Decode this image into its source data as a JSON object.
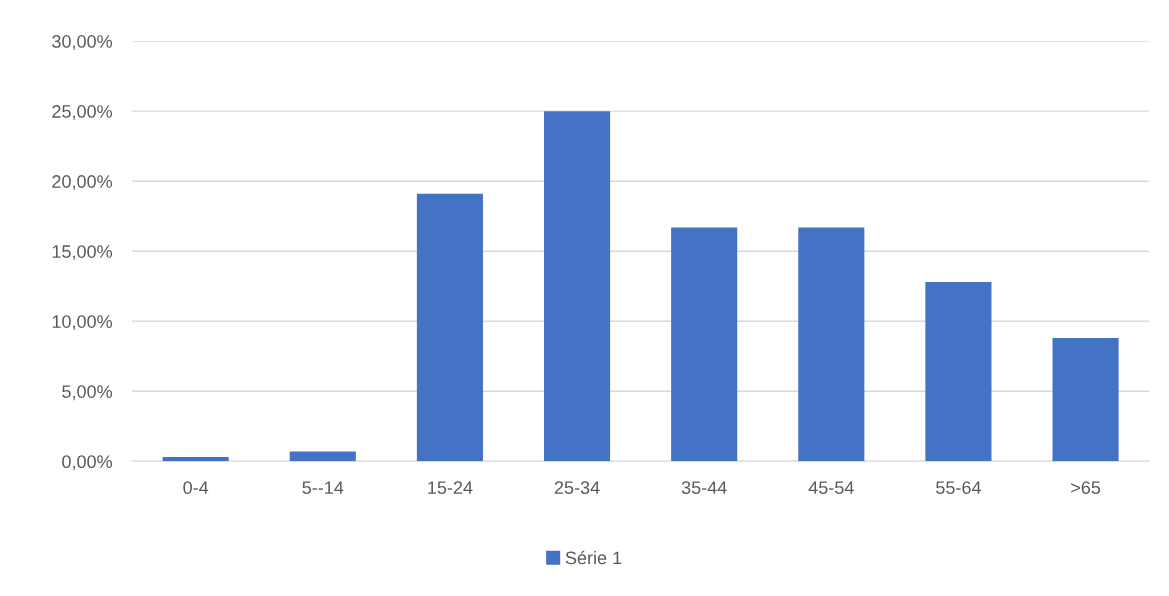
{
  "chart_data": {
    "type": "bar",
    "categories": [
      "0-4",
      "5--14",
      "15-24",
      "25-34",
      "35-44",
      "45-54",
      "55-64",
      ">65"
    ],
    "series": [
      {
        "name": "Série 1",
        "color": "#4472c4",
        "values": [
          0.3,
          0.7,
          19.1,
          25.0,
          16.7,
          16.7,
          12.8,
          8.8
        ]
      }
    ],
    "ylim": [
      0,
      30
    ],
    "yticks": [
      {
        "value": 0,
        "label": "0,00%"
      },
      {
        "value": 5,
        "label": "5,00%"
      },
      {
        "value": 10,
        "label": "10,00%"
      },
      {
        "value": 15,
        "label": "15,00%"
      },
      {
        "value": 20,
        "label": "20,00%"
      },
      {
        "value": 25,
        "label": "25,00%"
      },
      {
        "value": 30,
        "label": "30,00%"
      }
    ],
    "grid": "y",
    "legend": "bottom"
  }
}
